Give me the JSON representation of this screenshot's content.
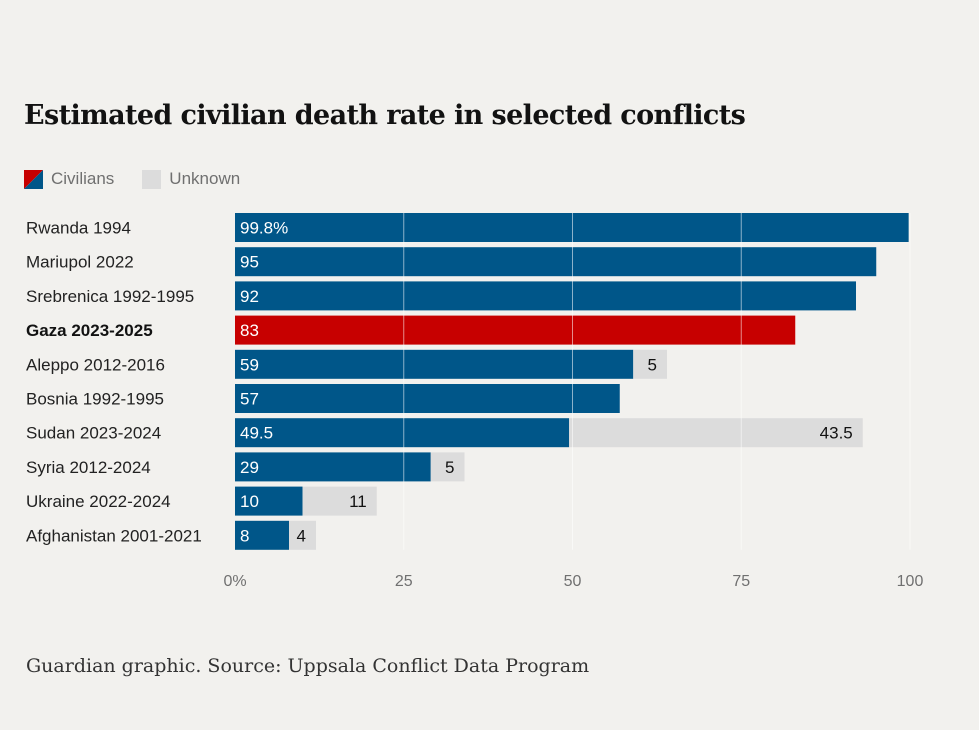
{
  "title": "Estimated civilian death rate in selected conflicts",
  "legend": [
    {
      "label": "Civilians",
      "color_a": "#c70000",
      "color_b": "#005689"
    },
    {
      "label": "Unknown",
      "color": "#dcdcdc"
    }
  ],
  "source": "Guardian graphic. Source: Uppsala Conflict Data Program",
  "colors": {
    "civilians": "#005689",
    "highlight": "#c70000",
    "unknown": "#dcdcdc"
  },
  "chart_data": {
    "type": "bar",
    "orientation": "horizontal",
    "stacked": true,
    "title": "Estimated civilian death rate in selected conflicts",
    "categories": [
      "Rwanda 1994",
      "Mariupol 2022",
      "Srebrenica 1992-1995",
      "Gaza 2023-2025",
      "Aleppo 2012-2016",
      "Bosnia 1992-1995",
      "Sudan 2023-2024",
      "Syria 2012-2024",
      "Ukraine 2022-2024",
      "Afghanistan 2001-2021"
    ],
    "highlight_category": "Gaza 2023-2025",
    "series": [
      {
        "name": "Civilians",
        "values": [
          99.8,
          95,
          92,
          83,
          59,
          57,
          49.5,
          29,
          10,
          8
        ],
        "labels": [
          "99.8%",
          "95",
          "92",
          "83",
          "59",
          "57",
          "49.5",
          "29",
          "10",
          "8"
        ]
      },
      {
        "name": "Unknown",
        "values": [
          0,
          0,
          0,
          0,
          5,
          0,
          43.5,
          5,
          11,
          4
        ],
        "labels": [
          "",
          "",
          "",
          "",
          "5",
          "",
          "43.5",
          "5",
          "11",
          "4"
        ]
      }
    ],
    "xlim": [
      0,
      100
    ],
    "xticks": [
      0,
      25,
      50,
      75,
      100
    ],
    "xtick_labels": [
      "0%",
      "25",
      "50",
      "75",
      "100"
    ],
    "grid": true,
    "legend_position": "top-left"
  }
}
